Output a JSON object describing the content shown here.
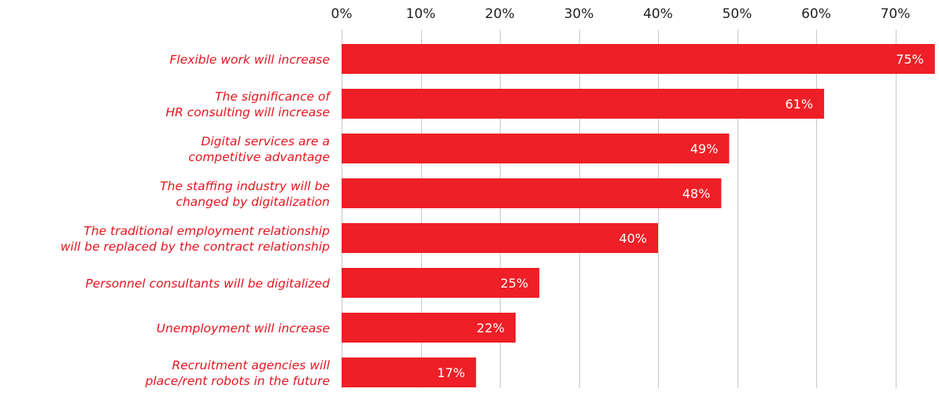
{
  "chart_data": {
    "type": "bar",
    "orientation": "horizontal",
    "title": "",
    "xlabel": "",
    "ylabel": "",
    "xlim": [
      0,
      75
    ],
    "x_ticks": [
      {
        "value": 0,
        "label": "0%"
      },
      {
        "value": 10,
        "label": "10%"
      },
      {
        "value": 20,
        "label": "20%"
      },
      {
        "value": 30,
        "label": "30%"
      },
      {
        "value": 40,
        "label": "40%"
      },
      {
        "value": 50,
        "label": "50%"
      },
      {
        "value": 60,
        "label": "60%"
      },
      {
        "value": 70,
        "label": "70%"
      }
    ],
    "tick_position": "top",
    "grid": true,
    "categories": [
      [
        "Flexible work will increase"
      ],
      [
        "The significance of",
        "HR consulting will increase"
      ],
      [
        "Digital services are a",
        "competitive advantage"
      ],
      [
        "The staffing industry will be",
        "changed by digitalization"
      ],
      [
        "The traditional employment relationship",
        "will be replaced by the contract relationship"
      ],
      [
        "Personnel consultants will be digitalized"
      ],
      [
        "Unemployment will increase"
      ],
      [
        "Recruitment agencies will",
        "place/rent robots in the future"
      ]
    ],
    "values": [
      75,
      61,
      49,
      48,
      40,
      25,
      22,
      17
    ],
    "value_labels": [
      "75%",
      "61%",
      "49%",
      "48%",
      "40%",
      "25%",
      "22%",
      "17%"
    ],
    "colors": {
      "bar": "#ee1f26",
      "category_text": "#e3161f",
      "value_text": "#ffffff",
      "grid": "#c8c8c8",
      "tick_text": "#222222"
    }
  }
}
